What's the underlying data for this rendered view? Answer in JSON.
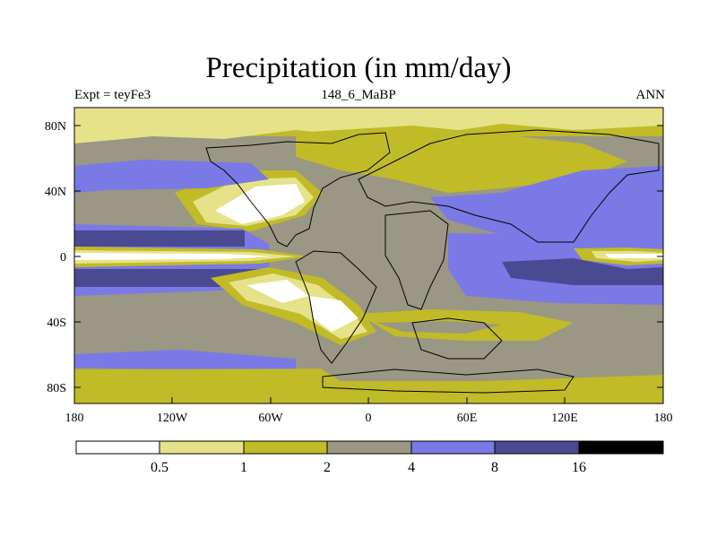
{
  "title": "Precipitation (in mm/day)",
  "left_label": "Expt = teyFe3",
  "center_label": "148_6_MaBP",
  "right_label": "ANN",
  "colors": {
    "white": "#ffffff",
    "pale": "#e6e28a",
    "olive": "#c0bb27",
    "gray": "#9a9784",
    "blue": "#7a79e6",
    "navy": "#4a4a92",
    "black": "#000000"
  },
  "chart_data": {
    "type": "map",
    "variable": "Precipitation",
    "units": "mm/day",
    "season": "ANN",
    "lat_ticks": [
      {
        "value": 80,
        "label": "80N"
      },
      {
        "value": 40,
        "label": "40N"
      },
      {
        "value": 0,
        "label": "0"
      },
      {
        "value": -40,
        "label": "40S"
      },
      {
        "value": -80,
        "label": "80S"
      }
    ],
    "lon_ticks": [
      {
        "value": -180,
        "label": "180"
      },
      {
        "value": -120,
        "label": "120W"
      },
      {
        "value": -60,
        "label": "60W"
      },
      {
        "value": 0,
        "label": "0"
      },
      {
        "value": 60,
        "label": "60E"
      },
      {
        "value": 120,
        "label": "120E"
      },
      {
        "value": 180,
        "label": "180"
      }
    ],
    "colorbar": {
      "levels": [
        "0.5",
        "1",
        "2",
        "4",
        "8",
        "16"
      ],
      "colors": [
        "#ffffff",
        "#e6e28a",
        "#c0bb27",
        "#9a9784",
        "#7a79e6",
        "#4a4a92",
        "#000000"
      ]
    }
  }
}
